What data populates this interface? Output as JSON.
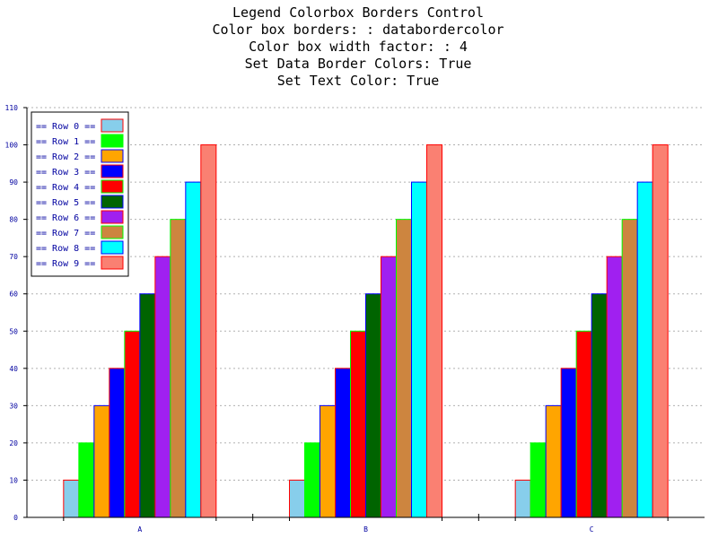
{
  "colors": {
    "axis": "#000000",
    "grid": "#b0b0b0",
    "tick_text": "#0000a0",
    "legend_text": "#0000a0"
  },
  "chart_data": {
    "type": "bar",
    "title_lines": [
      "Legend Colorbox Borders Control",
      "Color box borders: : databordercolor",
      "Color box width factor: : 4",
      "Set Data Border Colors: True",
      "Set Text Color: True"
    ],
    "categories": [
      "A",
      "B",
      "C"
    ],
    "ylim": [
      0,
      110
    ],
    "yticks": [
      0,
      10,
      20,
      30,
      40,
      50,
      60,
      70,
      80,
      90,
      100,
      110
    ],
    "grid": true,
    "legend_position": "top-left",
    "series": [
      {
        "name": "== Row 0 ==",
        "values": [
          10,
          10,
          10
        ],
        "fill": "#87ceeb",
        "border": "#ff0000"
      },
      {
        "name": "== Row 1 ==",
        "values": [
          20,
          20,
          20
        ],
        "fill": "#00ff00",
        "border": "#00ff00"
      },
      {
        "name": "== Row 2 ==",
        "values": [
          30,
          30,
          30
        ],
        "fill": "#ffa500",
        "border": "#0000ff"
      },
      {
        "name": "== Row 3 ==",
        "values": [
          40,
          40,
          40
        ],
        "fill": "#0000ff",
        "border": "#ff0000"
      },
      {
        "name": "== Row 4 ==",
        "values": [
          50,
          50,
          50
        ],
        "fill": "#ff0000",
        "border": "#00ff00"
      },
      {
        "name": "== Row 5 ==",
        "values": [
          60,
          60,
          60
        ],
        "fill": "#006400",
        "border": "#0000ff"
      },
      {
        "name": "== Row 6 ==",
        "values": [
          70,
          70,
          70
        ],
        "fill": "#a020f0",
        "border": "#ff0000"
      },
      {
        "name": "== Row 7 ==",
        "values": [
          80,
          80,
          80
        ],
        "fill": "#cd853f",
        "border": "#00ff00"
      },
      {
        "name": "== Row 8 ==",
        "values": [
          90,
          90,
          90
        ],
        "fill": "#00ffff",
        "border": "#0000ff"
      },
      {
        "name": "== Row 9 ==",
        "values": [
          100,
          100,
          100
        ],
        "fill": "#fa8072",
        "border": "#ff0000"
      }
    ]
  }
}
